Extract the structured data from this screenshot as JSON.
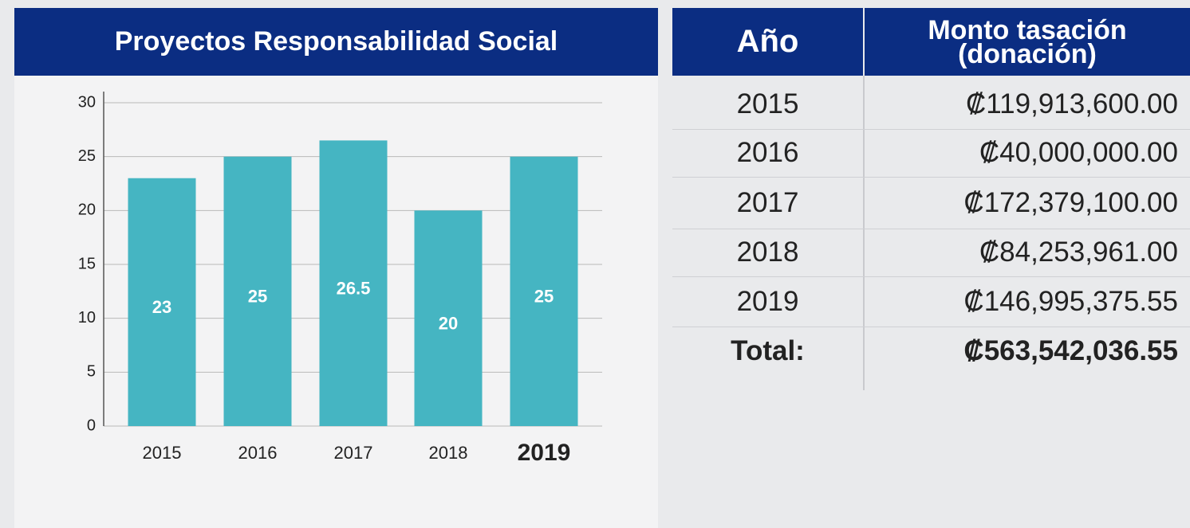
{
  "chart_data": {
    "type": "bar",
    "title": "Proyectos Responsabilidad Social",
    "categories": [
      "2015",
      "2016",
      "2017",
      "2018",
      "2019"
    ],
    "values": [
      23,
      25,
      26.5,
      20,
      25
    ],
    "color": "#45b5c2",
    "ylim": [
      0,
      30
    ],
    "yticks": [
      0,
      5,
      10,
      15,
      20,
      25,
      30
    ],
    "grid": true
  },
  "table": {
    "headers": [
      "Año",
      "Monto tasación (donación)"
    ],
    "rows": [
      [
        "2015",
        "₡119,913,600.00"
      ],
      [
        "2016",
        "₡40,000,000.00"
      ],
      [
        "2017",
        "₡172,379,100.00"
      ],
      [
        "2018",
        "₡84,253,961.00"
      ],
      [
        "2019",
        "₡146,995,375.55"
      ],
      [
        "Total:",
        "₡563,542,036.55"
      ]
    ]
  }
}
